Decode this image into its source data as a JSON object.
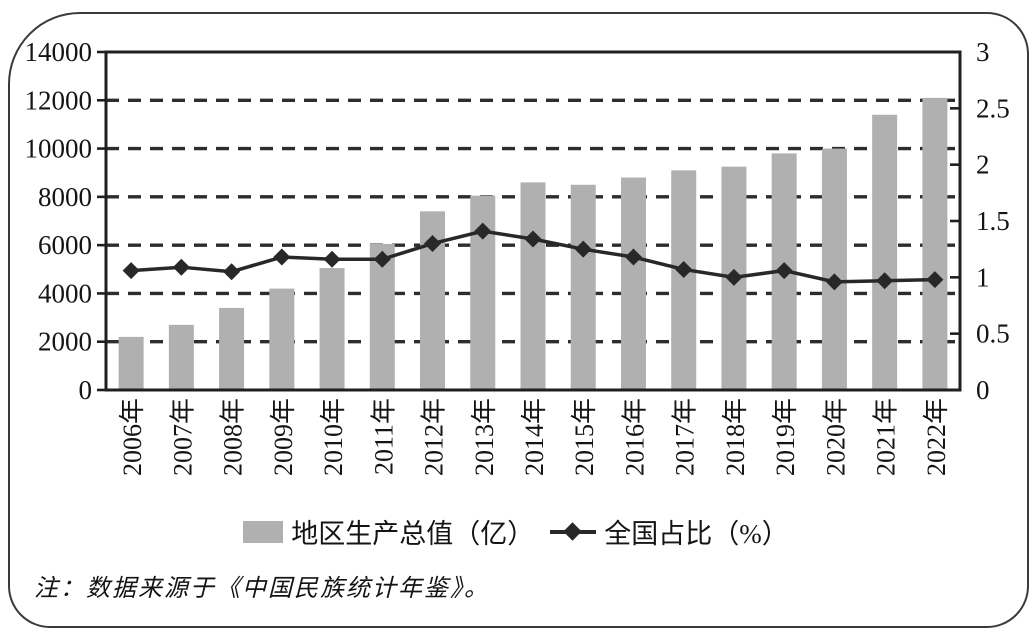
{
  "chart_data": {
    "type": "bar",
    "subtype": "combo-bar-line-dual-axis",
    "categories": [
      "2006年",
      "2007年",
      "2008年",
      "2009年",
      "2010年",
      "2011年",
      "2012年",
      "2013年",
      "2014年",
      "2015年",
      "2016年",
      "2017年",
      "2018年",
      "2019年",
      "2020年",
      "2021年",
      "2022年"
    ],
    "series": [
      {
        "name": "地区生产总值（亿）",
        "type": "bar",
        "axis": "left",
        "values": [
          2200,
          2700,
          3400,
          4200,
          5050,
          6050,
          7400,
          8050,
          8600,
          8500,
          8800,
          9100,
          9250,
          9800,
          10000,
          11400,
          12100
        ]
      },
      {
        "name": "全国占比（%）",
        "type": "line",
        "axis": "right",
        "marker": "diamond",
        "values": [
          1.06,
          1.09,
          1.05,
          1.18,
          1.16,
          1.16,
          1.3,
          1.41,
          1.34,
          1.25,
          1.18,
          1.07,
          1.0,
          1.06,
          0.96,
          0.97,
          0.98
        ]
      }
    ],
    "title": "",
    "xlabel": "",
    "ylabel_left": "",
    "ylabel_right": "",
    "left_axis": {
      "min": 0,
      "max": 14000,
      "step": 2000,
      "tick_labels": [
        "14000",
        "12000",
        "10000",
        "8000",
        "6000",
        "4000",
        "2000",
        "0"
      ]
    },
    "right_axis": {
      "min": 0,
      "max": 3,
      "step": 0.5,
      "tick_labels": [
        "3",
        "2.5",
        "2",
        "1.5",
        "1",
        "0.5",
        "0"
      ]
    },
    "grid": "horizontal-dashed",
    "legend_position": "bottom-center",
    "x_tick_rotation": -90,
    "colors": {
      "bar": "#b0b0b0",
      "line": "#282828",
      "grid": "#2d2d2d",
      "border": "#1f1f1f",
      "text": "#141414"
    }
  },
  "legend": {
    "bar_label": "地区生产总值（亿）",
    "line_label": "全国占比（%）"
  },
  "note": "注：数据来源于《中国民族统计年鉴》。"
}
